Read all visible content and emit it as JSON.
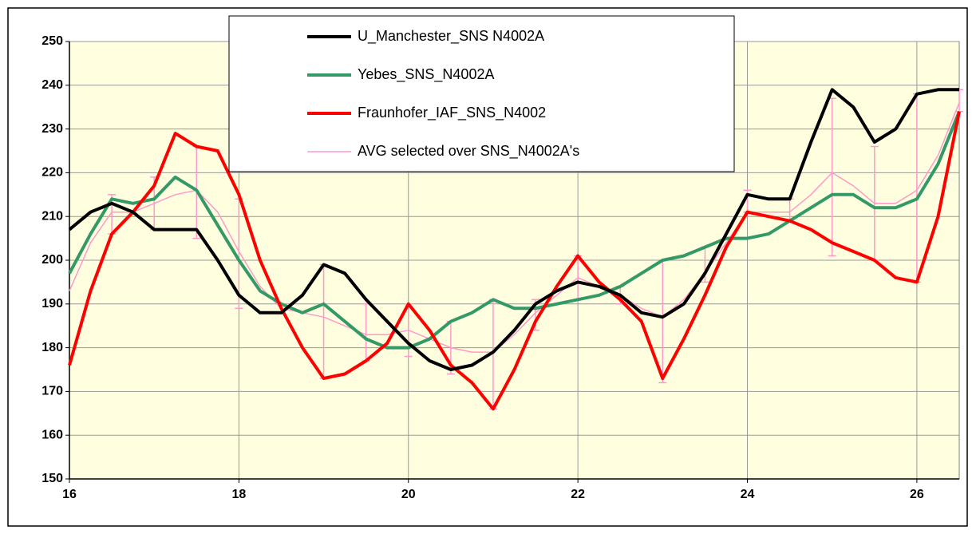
{
  "chart_data": {
    "type": "line",
    "x": [
      16,
      16.25,
      16.5,
      16.75,
      17,
      17.25,
      17.5,
      17.75,
      18,
      18.25,
      18.5,
      18.75,
      19,
      19.25,
      19.5,
      19.75,
      20,
      20.25,
      20.5,
      20.75,
      21,
      21.25,
      21.5,
      21.75,
      22,
      22.25,
      22.5,
      22.75,
      23,
      23.25,
      23.5,
      23.75,
      24,
      24.25,
      24.5,
      24.75,
      25,
      25.25,
      25.5,
      25.75,
      26,
      26.25,
      26.5
    ],
    "series": [
      {
        "name": "U_Manchester_SNS N4002A",
        "color": "#000000",
        "width": 4,
        "values": [
          207,
          211,
          213,
          211,
          207,
          207,
          207,
          200,
          192,
          188,
          188,
          192,
          199,
          197,
          191,
          186,
          181,
          177,
          175,
          176,
          179,
          184,
          190,
          193,
          195,
          194,
          192,
          188,
          187,
          190,
          197,
          206,
          215,
          214,
          214,
          227,
          239,
          235,
          227,
          230,
          238,
          239,
          239
        ]
      },
      {
        "name": "Yebes_SNS_N4002A",
        "color": "#339966",
        "width": 4,
        "values": [
          197,
          206,
          214,
          213,
          214,
          219,
          216,
          208,
          200,
          193,
          190,
          188,
          190,
          186,
          182,
          180,
          180,
          182,
          186,
          188,
          191,
          189,
          189,
          190,
          191,
          192,
          194,
          197,
          200,
          201,
          203,
          205,
          205,
          206,
          209,
          212,
          215,
          215,
          212,
          212,
          214,
          222,
          234
        ]
      },
      {
        "name": "Fraunhofer_IAF_SNS_N4002",
        "color": "#ff0000",
        "width": 4,
        "values": [
          176,
          193,
          206,
          211,
          217,
          229,
          226,
          225,
          215,
          200,
          189,
          180,
          173,
          174,
          177,
          181,
          190,
          184,
          176,
          172,
          166,
          175,
          186,
          194,
          201,
          195,
          191,
          186,
          173,
          182,
          192,
          203,
          211,
          210,
          209,
          207,
          204,
          202,
          200,
          196,
          195,
          210,
          234
        ]
      },
      {
        "name": "AVG selected over SNS_N4002A's",
        "color": "#ff99cc",
        "width": 1.5,
        "values": [
          193,
          204,
          211,
          211,
          213,
          215,
          216,
          211,
          202,
          194,
          189,
          188,
          187,
          185,
          183,
          183,
          184,
          182,
          180,
          179,
          179,
          183,
          188,
          192,
          196,
          194,
          192,
          189,
          187,
          191,
          197,
          204,
          211,
          211,
          211,
          215,
          220,
          217,
          213,
          213,
          216,
          224,
          236
        ]
      }
    ],
    "error_bars": [
      {
        "x": 16.5,
        "low": 206,
        "high": 215
      },
      {
        "x": 17,
        "low": 207,
        "high": 219
      },
      {
        "x": 17.5,
        "low": 205,
        "high": 226
      },
      {
        "x": 18,
        "low": 189,
        "high": 214
      },
      {
        "x": 19,
        "low": 173,
        "high": 199
      },
      {
        "x": 19.5,
        "low": 177,
        "high": 190
      },
      {
        "x": 20,
        "low": 178,
        "high": 190
      },
      {
        "x": 20.5,
        "low": 174,
        "high": 186
      },
      {
        "x": 21,
        "low": 166,
        "high": 191
      },
      {
        "x": 21.5,
        "low": 184,
        "high": 191
      },
      {
        "x": 22,
        "low": 191,
        "high": 201
      },
      {
        "x": 22.5,
        "low": 190,
        "high": 194
      },
      {
        "x": 23,
        "low": 172,
        "high": 200
      },
      {
        "x": 23.5,
        "low": 195,
        "high": 203
      },
      {
        "x": 24,
        "low": 211,
        "high": 216
      },
      {
        "x": 24.5,
        "low": 209,
        "high": 214
      },
      {
        "x": 25,
        "low": 201,
        "high": 237
      },
      {
        "x": 25.5,
        "low": 200,
        "high": 226
      },
      {
        "x": 26,
        "low": 195,
        "high": 238
      },
      {
        "x": 26.5,
        "low": 234,
        "high": 239
      }
    ],
    "error_color": "#ff99cc",
    "xlim": [
      16,
      26.5
    ],
    "xticks": [
      16,
      18,
      20,
      22,
      24,
      26
    ],
    "ylim": [
      150,
      250
    ],
    "yticks": [
      150,
      160,
      170,
      180,
      190,
      200,
      210,
      220,
      230,
      240,
      250
    ],
    "grid": true,
    "legend_position": "top",
    "plot_background": "#ffffe0"
  }
}
